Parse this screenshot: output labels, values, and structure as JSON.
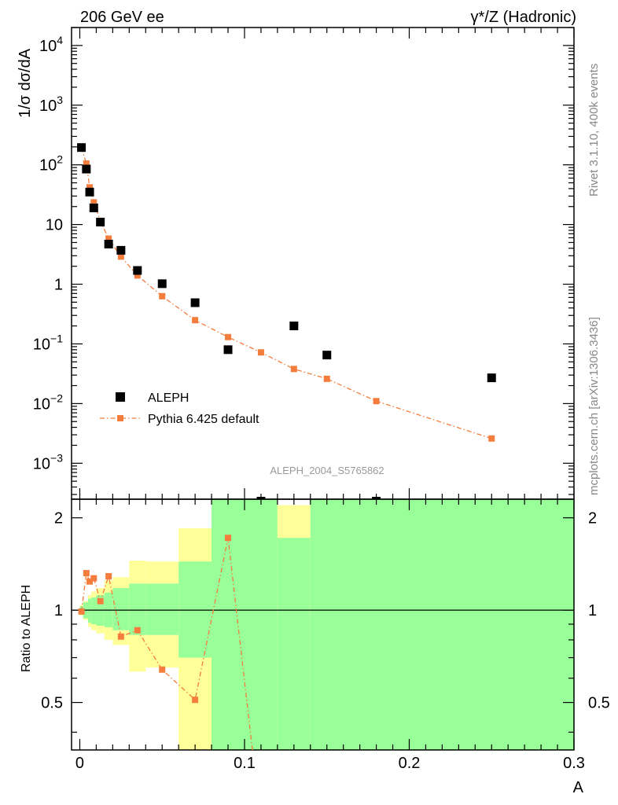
{
  "header": {
    "left": "206 GeV ee",
    "right": "γ*/Z (Hadronic)"
  },
  "side_text": {
    "rivet": "Rivet 3.1.10,  400k events",
    "mcplots": "mcplots.cern.ch [arXiv:1306.3436]"
  },
  "analysis_id": "ALEPH_2004_S5765862",
  "legend": {
    "data_label": "ALEPH",
    "mc_label": "Pythia 6.425 default"
  },
  "colors": {
    "data": "#000000",
    "mc": "#f47c3c",
    "band_inner": "#99ff99",
    "band_outer": "#ffff99"
  },
  "chart_data": [
    {
      "type": "scatter",
      "panel": "main",
      "ylabel": "1/σ  dσ/dA",
      "yscale": "log",
      "ylim": [
        0.00025,
        20000
      ],
      "xlim": [
        -0.005,
        0.3
      ],
      "yticks": [
        {
          "base": "10",
          "exp": "4"
        },
        {
          "base": "10",
          "exp": "3"
        },
        {
          "base": "10",
          "exp": "2"
        },
        {
          "base": "10",
          "exp": ""
        },
        {
          "base": "1",
          "exp": ""
        },
        {
          "base": "10",
          "exp": "−1"
        },
        {
          "base": "10",
          "exp": "−2"
        },
        {
          "base": "10",
          "exp": "−3"
        }
      ],
      "series": [
        {
          "name": "ALEPH",
          "x": [
            0.001,
            0.004,
            0.006,
            0.0085,
            0.0125,
            0.0175,
            0.025,
            0.035,
            0.05,
            0.07,
            0.09,
            0.11,
            0.13,
            0.15,
            0.18,
            0.25
          ],
          "y": [
            195,
            85,
            35,
            19,
            11,
            4.7,
            3.7,
            1.7,
            1.02,
            0.49,
            0.08,
            0.00021,
            0.2,
            0.065,
            0.00021,
            0.027
          ]
        },
        {
          "name": "Pythia 6.425 default",
          "x": [
            0.001,
            0.004,
            0.006,
            0.0085,
            0.0125,
            0.0175,
            0.025,
            0.035,
            0.05,
            0.07,
            0.09,
            0.11,
            0.13,
            0.15,
            0.18,
            0.25
          ],
          "y": [
            195,
            105,
            42,
            23.5,
            11.5,
            5.8,
            2.9,
            1.4,
            0.63,
            0.25,
            0.13,
            0.072,
            0.038,
            0.026,
            0.011,
            0.0026
          ]
        }
      ]
    },
    {
      "type": "line",
      "panel": "ratio",
      "xlabel": "A",
      "ylabel": "Ratio to ALEPH",
      "ylim": [
        0.35,
        2.3
      ],
      "xlim": [
        -0.005,
        0.3
      ],
      "yticks": [
        "0.5",
        "1",
        "2"
      ],
      "xticks": [
        "0",
        "0.1",
        "0.2",
        "0.3"
      ],
      "xtick_values": [
        0,
        0.1,
        0.2,
        0.3
      ],
      "bands": [
        {
          "x0": 0.0,
          "x1": 0.002,
          "inner": [
            0.97,
            1.03
          ],
          "outer": [
            0.96,
            1.04
          ]
        },
        {
          "x0": 0.002,
          "x1": 0.005,
          "inner": [
            0.94,
            1.06
          ],
          "outer": [
            0.93,
            1.07
          ]
        },
        {
          "x0": 0.005,
          "x1": 0.007,
          "inner": [
            0.91,
            1.09
          ],
          "outer": [
            0.88,
            1.12
          ]
        },
        {
          "x0": 0.007,
          "x1": 0.01,
          "inner": [
            0.9,
            1.1
          ],
          "outer": [
            0.86,
            1.15
          ]
        },
        {
          "x0": 0.01,
          "x1": 0.015,
          "inner": [
            0.89,
            1.12
          ],
          "outer": [
            0.84,
            1.18
          ]
        },
        {
          "x0": 0.015,
          "x1": 0.02,
          "inner": [
            0.88,
            1.14
          ],
          "outer": [
            0.8,
            1.25
          ]
        },
        {
          "x0": 0.02,
          "x1": 0.03,
          "inner": [
            0.86,
            1.18
          ],
          "outer": [
            0.77,
            1.28
          ]
        },
        {
          "x0": 0.03,
          "x1": 0.04,
          "inner": [
            0.83,
            1.22
          ],
          "outer": [
            0.63,
            1.45
          ]
        },
        {
          "x0": 0.04,
          "x1": 0.06,
          "inner": [
            0.83,
            1.22
          ],
          "outer": [
            0.65,
            1.44
          ]
        },
        {
          "x0": 0.06,
          "x1": 0.08,
          "inner": [
            0.7,
            1.44
          ],
          "outer": [
            0.35,
            1.85
          ]
        },
        {
          "x0": 0.08,
          "x1": 0.12,
          "inner": [
            0.35,
            2.3
          ],
          "outer": [
            0.35,
            2.3
          ]
        },
        {
          "x0": 0.12,
          "x1": 0.14,
          "inner": [
            0.35,
            1.72
          ],
          "outer": [
            0.35,
            2.2
          ]
        },
        {
          "x0": 0.14,
          "x1": 0.3,
          "inner": [
            0.35,
            2.3
          ],
          "outer": [
            0.35,
            2.3
          ]
        }
      ],
      "series": [
        {
          "name": "Pythia 6.425 default",
          "x": [
            0.001,
            0.004,
            0.006,
            0.0085,
            0.0125,
            0.0175,
            0.025,
            0.035,
            0.05,
            0.07,
            0.09,
            0.11
          ],
          "y": [
            0.99,
            1.32,
            1.24,
            1.27,
            1.07,
            1.29,
            0.82,
            0.86,
            0.64,
            0.51,
            1.72,
            0.2
          ]
        }
      ]
    }
  ]
}
